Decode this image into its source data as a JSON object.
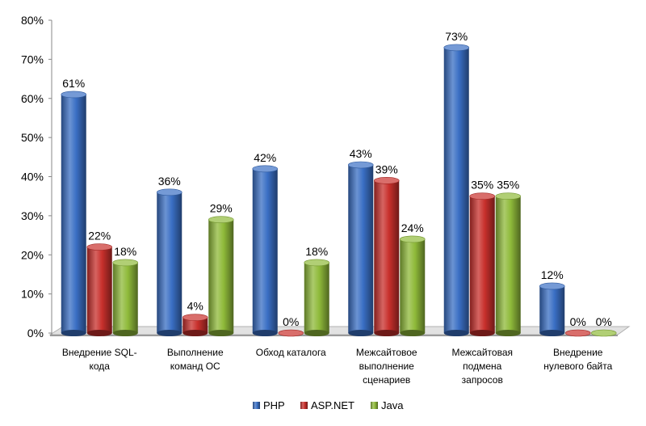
{
  "chart_data": {
    "type": "bar",
    "title": "",
    "xlabel": "",
    "ylabel": "",
    "ylim": [
      0,
      80
    ],
    "yticks": [
      0,
      10,
      20,
      30,
      40,
      50,
      60,
      70,
      80
    ],
    "ytick_labels": [
      "0%",
      "10%",
      "20%",
      "30%",
      "40%",
      "50%",
      "60%",
      "70%",
      "80%"
    ],
    "categories": [
      [
        "Внедрение SQL-",
        "кода"
      ],
      [
        "Выполнение",
        "команд ОС"
      ],
      [
        "Обход каталога"
      ],
      [
        "Межсайтовое",
        "выполнение",
        "сценариев"
      ],
      [
        "Межсайтовая",
        "подмена",
        "запросов"
      ],
      [
        "Внедрение",
        "нулевого байта"
      ]
    ],
    "series": [
      {
        "name": "PHP",
        "color": "#3a6fc4",
        "values": [
          61,
          36,
          42,
          43,
          73,
          12
        ],
        "labels": [
          "61%",
          "36%",
          "42%",
          "43%",
          "73%",
          "12%"
        ]
      },
      {
        "name": "ASP.NET",
        "color": "#c8302c",
        "values": [
          22,
          4,
          0,
          39,
          35,
          0
        ],
        "labels": [
          "22%",
          "4%",
          "0%",
          "39%",
          "35%",
          "0%"
        ]
      },
      {
        "name": "Java",
        "color": "#8fba3a",
        "values": [
          18,
          29,
          18,
          24,
          35,
          0
        ],
        "labels": [
          "18%",
          "29%",
          "18%",
          "24%",
          "35%",
          "0%"
        ]
      }
    ],
    "legend_position": "bottom",
    "grid": false
  }
}
